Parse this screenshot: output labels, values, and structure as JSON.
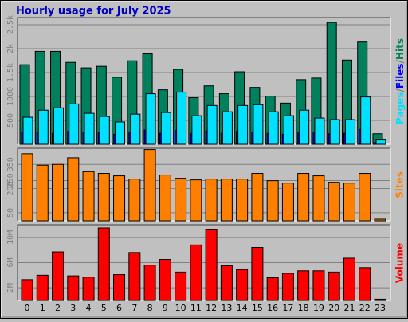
{
  "chart_data": [
    {
      "type": "bar",
      "title": "Hourly usage for July 2025",
      "categories": [
        "0",
        "1",
        "2",
        "3",
        "4",
        "5",
        "6",
        "7",
        "8",
        "9",
        "10",
        "11",
        "12",
        "13",
        "14",
        "15",
        "16",
        "17",
        "18",
        "19",
        "20",
        "21",
        "22",
        "23"
      ],
      "ylim": [
        0,
        2650
      ],
      "yticks": [
        500,
        1000,
        {
          "value": 1500,
          "label": "1.5k"
        },
        {
          "value": 2000,
          "label": "2k"
        },
        {
          "value": 2500,
          "label": "2.5k"
        }
      ],
      "grid": true,
      "series": [
        {
          "name": "Hits",
          "color": "#00805c",
          "values": [
            1664,
            1943,
            1943,
            1713,
            1598,
            1631,
            1402,
            1746,
            1893,
            1139,
            1566,
            975,
            1221,
            1057,
            1516,
            1189,
            1008,
            861,
            1352,
            1385,
            2549,
            1762,
            2139,
            221
          ]
        },
        {
          "name": "Files",
          "color": "#0000ff",
          "values": [
            260,
            240,
            230,
            270,
            250,
            240,
            210,
            260,
            300,
            230,
            290,
            220,
            280,
            230,
            270,
            260,
            230,
            210,
            250,
            240,
            220,
            230,
            310,
            40
          ]
        },
        {
          "name": "Pages",
          "color": "#00e0ff",
          "values": [
            566,
            713,
            762,
            844,
            648,
            582,
            467,
            631,
            1057,
            664,
            1090,
            598,
            811,
            680,
            811,
            828,
            680,
            598,
            713,
            549,
            516,
            516,
            990,
            90
          ]
        }
      ]
    },
    {
      "type": "bar",
      "series_name": "Sites",
      "color": "#ff8000",
      "ylim": [
        0,
        450
      ],
      "yticks": [
        50,
        200,
        250,
        350
      ],
      "grid": true,
      "values": [
        416,
        345,
        350,
        391,
        305,
        294,
        279,
        259,
        442,
        284,
        264,
        254,
        259,
        259,
        259,
        294,
        249,
        234,
        294,
        279,
        239,
        234,
        294,
        10
      ]
    },
    {
      "type": "bar",
      "series_name": "Volume",
      "color": "#ff0000",
      "ylim": [
        0,
        12000000
      ],
      "yticks": [
        {
          "value": 2000000,
          "label": "2M"
        },
        {
          "value": 6000000,
          "label": "6M"
        },
        {
          "value": 10000000,
          "label": "10M"
        }
      ],
      "grid": true,
      "values": [
        3300000,
        4000000,
        7700000,
        3900000,
        3700000,
        11500000,
        4100000,
        7600000,
        5600000,
        6500000,
        4500000,
        8800000,
        11300000,
        5500000,
        4900000,
        8400000,
        3600000,
        4300000,
        4700000,
        4700000,
        4500000,
        6700000,
        5200000,
        200000
      ]
    }
  ]
}
